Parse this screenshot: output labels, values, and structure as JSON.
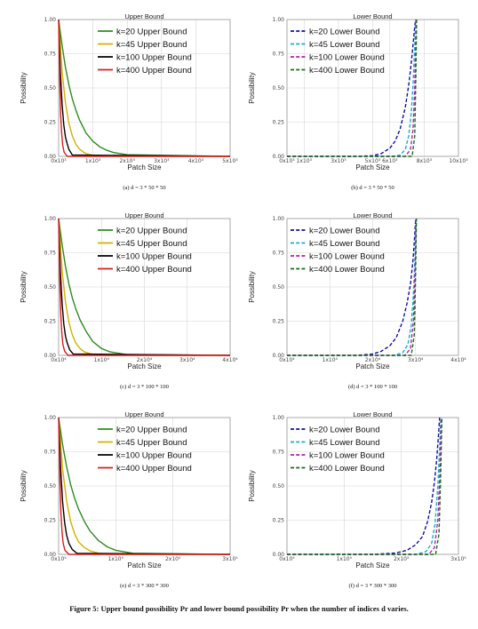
{
  "figure_caption": "Figure 5: Upper bound possibility Pr and lower bound possibility Pr when the number of indices d varies.",
  "chart_data": [
    {
      "type": "line",
      "subcaption": "(a) d = 3 * 50 * 50",
      "title": "Upper Bound",
      "xlabel": "Patch Size",
      "ylabel": "Possibility",
      "ylim": [
        0,
        1
      ],
      "yticks": [
        "0.00",
        "0.25",
        "0.50",
        "0.75",
        "1.00"
      ],
      "xlim": [
        0,
        5000
      ],
      "xticks": [
        {
          "v": 0,
          "label": "0x10³"
        },
        {
          "v": 1000,
          "label": "1x10³"
        },
        {
          "v": 2000,
          "label": "2x10³"
        },
        {
          "v": 3000,
          "label": "3x10³"
        },
        {
          "v": 4000,
          "label": "4x10³"
        },
        {
          "v": 5000,
          "label": "5x10³"
        }
      ],
      "grid": true,
      "legend_position": "top-right",
      "series": [
        {
          "name": "k=20 Upper Bound",
          "color": "#2e8b1f",
          "dash": "solid",
          "x": [
            0,
            100,
            200,
            300,
            400,
            500,
            600,
            800,
            1000,
            1200,
            1400,
            1600,
            2000,
            5000
          ],
          "y": [
            1.0,
            0.81,
            0.65,
            0.52,
            0.42,
            0.34,
            0.27,
            0.17,
            0.11,
            0.07,
            0.045,
            0.028,
            0.012,
            0.0
          ]
        },
        {
          "name": "k=45 Upper Bound",
          "color": "#d4b000",
          "dash": "solid",
          "x": [
            0,
            100,
            200,
            300,
            400,
            500,
            600,
            700,
            800,
            1000,
            1200,
            5000
          ],
          "y": [
            1.0,
            0.62,
            0.39,
            0.24,
            0.15,
            0.09,
            0.055,
            0.035,
            0.02,
            0.008,
            0.002,
            0.0
          ]
        },
        {
          "name": "k=100 Upper Bound",
          "color": "#000000",
          "dash": "solid",
          "x": [
            0,
            50,
            100,
            150,
            200,
            250,
            300,
            400,
            5000
          ],
          "y": [
            1.0,
            0.62,
            0.38,
            0.23,
            0.14,
            0.09,
            0.05,
            0.01,
            0.0
          ]
        },
        {
          "name": "k=400 Upper Bound",
          "color": "#d62020",
          "dash": "solid",
          "x": [
            0,
            30,
            60,
            90,
            120,
            160,
            250,
            5000
          ],
          "y": [
            1.0,
            0.55,
            0.3,
            0.16,
            0.08,
            0.03,
            0.0,
            0.0
          ]
        }
      ]
    },
    {
      "type": "line",
      "subcaption": "(b) d = 3 * 50 * 50",
      "title": "Lower Bound",
      "xlabel": "Patch Size",
      "ylabel": "Possibility",
      "ylim": [
        0,
        1
      ],
      "yticks": [
        "0.00",
        "0.25",
        "0.50",
        "0.75",
        "1.00"
      ],
      "xlim": [
        0,
        10000
      ],
      "xticks": [
        {
          "v": 0,
          "label": "0x10³"
        },
        {
          "v": 1000,
          "label": "1x10³"
        },
        {
          "v": 3000,
          "label": "3x10³"
        },
        {
          "v": 5000,
          "label": "5x10³"
        },
        {
          "v": 6000,
          "label": "6x10³"
        },
        {
          "v": 8000,
          "label": "8x10³"
        },
        {
          "v": 10000,
          "label": "10x10³"
        }
      ],
      "grid": true,
      "legend_position": "top-left",
      "series": [
        {
          "name": "k=20 Lower Bound",
          "color": "#1010a0",
          "dash": "dashed",
          "x": [
            0,
            4000,
            5000,
            5500,
            6000,
            6300,
            6600,
            6900,
            7100,
            7200,
            7300,
            7400,
            7450,
            7500
          ],
          "y": [
            0.0,
            0.0,
            0.005,
            0.02,
            0.06,
            0.11,
            0.2,
            0.36,
            0.52,
            0.63,
            0.75,
            0.88,
            0.95,
            1.0
          ]
        },
        {
          "name": "k=45 Lower Bound",
          "color": "#16b0c8",
          "dash": "dashed",
          "x": [
            0,
            6200,
            6600,
            6900,
            7100,
            7250,
            7350,
            7420,
            7480,
            7520
          ],
          "y": [
            0.0,
            0.0,
            0.01,
            0.05,
            0.15,
            0.32,
            0.52,
            0.72,
            0.9,
            1.0
          ]
        },
        {
          "name": "k=100 Lower Bound",
          "color": "#b020b0",
          "dash": "dashed",
          "x": [
            0,
            6900,
            7200,
            7350,
            7450,
            7500,
            7540
          ],
          "y": [
            0.0,
            0.0,
            0.05,
            0.2,
            0.5,
            0.8,
            1.0
          ]
        },
        {
          "name": "k=400 Lower Bound",
          "color": "#1a6e1a",
          "dash": "dashed",
          "x": [
            0,
            7300,
            7450,
            7520,
            7560
          ],
          "y": [
            0.0,
            0.0,
            0.15,
            0.6,
            1.0
          ]
        }
      ]
    },
    {
      "type": "line",
      "subcaption": "(c) d = 3 * 100 * 100",
      "title": "Upper Bound",
      "xlabel": "Patch Size",
      "ylabel": "Possibility",
      "ylim": [
        0,
        1
      ],
      "yticks": [
        "0.00",
        "0.25",
        "0.50",
        "0.75",
        "1.00"
      ],
      "xlim": [
        0,
        40000
      ],
      "xticks": [
        {
          "v": 0,
          "label": "0x10⁴"
        },
        {
          "v": 10000,
          "label": "1x10⁴"
        },
        {
          "v": 20000,
          "label": "2x10⁴"
        },
        {
          "v": 30000,
          "label": "3x10⁴"
        },
        {
          "v": 40000,
          "label": "4x10⁴"
        }
      ],
      "grid": true,
      "legend_position": "top-right",
      "series": [
        {
          "name": "k=20 Upper Bound",
          "color": "#2e8b1f",
          "dash": "solid",
          "x": [
            0,
            800,
            1600,
            2400,
            3200,
            4000,
            5000,
            6500,
            8000,
            10000,
            12000,
            16000,
            40000
          ],
          "y": [
            1.0,
            0.81,
            0.65,
            0.52,
            0.42,
            0.34,
            0.26,
            0.17,
            0.1,
            0.05,
            0.025,
            0.005,
            0.0
          ]
        },
        {
          "name": "k=45 Upper Bound",
          "color": "#d4b000",
          "dash": "solid",
          "x": [
            0,
            800,
            1600,
            2400,
            3200,
            4000,
            5000,
            6000,
            8000,
            10000,
            40000
          ],
          "y": [
            1.0,
            0.62,
            0.39,
            0.24,
            0.15,
            0.09,
            0.05,
            0.025,
            0.006,
            0.0,
            0.0
          ]
        },
        {
          "name": "k=100 Upper Bound",
          "color": "#000000",
          "dash": "solid",
          "x": [
            0,
            400,
            800,
            1200,
            1600,
            2000,
            2600,
            3400,
            40000
          ],
          "y": [
            1.0,
            0.62,
            0.38,
            0.23,
            0.14,
            0.09,
            0.04,
            0.01,
            0.0
          ]
        },
        {
          "name": "k=400 Upper Bound",
          "color": "#d62020",
          "dash": "solid",
          "x": [
            0,
            250,
            500,
            750,
            1000,
            1400,
            2200,
            40000
          ],
          "y": [
            1.0,
            0.55,
            0.3,
            0.16,
            0.08,
            0.03,
            0.0,
            0.0
          ]
        }
      ]
    },
    {
      "type": "line",
      "subcaption": "(d) d = 3 * 100 * 100",
      "title": "Lower Bound",
      "xlabel": "Patch Size",
      "ylabel": "Possibility",
      "ylim": [
        0,
        1
      ],
      "yticks": [
        "0.00",
        "0.25",
        "0.50",
        "0.75",
        "1.00"
      ],
      "xlim": [
        0,
        40000
      ],
      "xticks": [
        {
          "v": 0,
          "label": "0x10⁴"
        },
        {
          "v": 10000,
          "label": "1x10⁴"
        },
        {
          "v": 20000,
          "label": "2x10⁴"
        },
        {
          "v": 30000,
          "label": "3x10⁴"
        },
        {
          "v": 40000,
          "label": "4x10⁴"
        }
      ],
      "grid": true,
      "legend_position": "top-left",
      "series": [
        {
          "name": "k=20 Lower Bound",
          "color": "#1010a0",
          "dash": "dashed",
          "x": [
            0,
            16000,
            20000,
            22000,
            24000,
            25500,
            27000,
            28000,
            28800,
            29400,
            29800,
            30000
          ],
          "y": [
            0.0,
            0.0,
            0.01,
            0.03,
            0.07,
            0.13,
            0.25,
            0.38,
            0.52,
            0.7,
            0.88,
            1.0
          ]
        },
        {
          "name": "k=45 Lower Bound",
          "color": "#16b0c8",
          "dash": "dashed",
          "x": [
            0,
            25000,
            27000,
            28200,
            29000,
            29500,
            29900,
            30100
          ],
          "y": [
            0.0,
            0.0,
            0.02,
            0.08,
            0.22,
            0.45,
            0.75,
            1.0
          ]
        },
        {
          "name": "k=100 Lower Bound",
          "color": "#b020b0",
          "dash": "dashed",
          "x": [
            0,
            27500,
            28800,
            29500,
            29900,
            30150
          ],
          "y": [
            0.0,
            0.0,
            0.05,
            0.25,
            0.65,
            1.0
          ]
        },
        {
          "name": "k=400 Lower Bound",
          "color": "#1a6e1a",
          "dash": "dashed",
          "x": [
            0,
            29000,
            29700,
            30000,
            30200
          ],
          "y": [
            0.0,
            0.0,
            0.15,
            0.6,
            1.0
          ]
        }
      ]
    },
    {
      "type": "line",
      "subcaption": "(e) d = 3 * 300 * 300",
      "title": "Upper Bound",
      "xlabel": "Patch Size",
      "ylabel": "Possibility",
      "ylim": [
        0,
        1
      ],
      "yticks": [
        "0.00",
        "0.25",
        "0.50",
        "0.75",
        "1.00"
      ],
      "xlim": [
        0,
        300000
      ],
      "xticks": [
        {
          "v": 0,
          "label": "0x10⁵"
        },
        {
          "v": 100000,
          "label": "1x10⁵"
        },
        {
          "v": 200000,
          "label": "2x10⁵"
        },
        {
          "v": 300000,
          "label": "3x10⁵"
        }
      ],
      "grid": true,
      "legend_position": "top-right",
      "series": [
        {
          "name": "k=20 Upper Bound",
          "color": "#2e8b1f",
          "dash": "solid",
          "x": [
            0,
            7000,
            14000,
            21000,
            28000,
            35000,
            45000,
            55000,
            70000,
            85000,
            100000,
            130000,
            300000
          ],
          "y": [
            1.0,
            0.8,
            0.64,
            0.51,
            0.41,
            0.33,
            0.24,
            0.17,
            0.1,
            0.055,
            0.03,
            0.008,
            0.0
          ]
        },
        {
          "name": "k=45 Upper Bound",
          "color": "#d4b000",
          "dash": "solid",
          "x": [
            0,
            7000,
            14000,
            21000,
            28000,
            35000,
            45000,
            55000,
            70000,
            90000,
            300000
          ],
          "y": [
            1.0,
            0.62,
            0.39,
            0.24,
            0.15,
            0.09,
            0.05,
            0.025,
            0.008,
            0.0,
            0.0
          ]
        },
        {
          "name": "k=100 Upper Bound",
          "color": "#000000",
          "dash": "solid",
          "x": [
            0,
            3500,
            7000,
            10500,
            14000,
            18000,
            24000,
            32000,
            300000
          ],
          "y": [
            1.0,
            0.62,
            0.38,
            0.23,
            0.14,
            0.08,
            0.035,
            0.008,
            0.0
          ]
        },
        {
          "name": "k=400 Upper Bound",
          "color": "#d62020",
          "dash": "solid",
          "x": [
            0,
            2000,
            4000,
            6000,
            8000,
            11000,
            18000,
            300000
          ],
          "y": [
            1.0,
            0.55,
            0.3,
            0.16,
            0.08,
            0.03,
            0.0,
            0.0
          ]
        }
      ]
    },
    {
      "type": "line",
      "subcaption": "(f) d = 3 * 300 * 300",
      "title": "Lower Bound",
      "xlabel": "Patch Size",
      "ylabel": "Possibility",
      "ylim": [
        0,
        1
      ],
      "yticks": [
        "0.00",
        "0.25",
        "0.50",
        "0.75",
        "1.00"
      ],
      "xlim": [
        0,
        300000
      ],
      "xticks": [
        {
          "v": 0,
          "label": "0x10⁵"
        },
        {
          "v": 100000,
          "label": "1x10⁵"
        },
        {
          "v": 200000,
          "label": "2x10⁵"
        },
        {
          "v": 300000,
          "label": "3x10⁵"
        }
      ],
      "grid": true,
      "legend_position": "top-left",
      "series": [
        {
          "name": "k=20 Lower Bound",
          "color": "#1010a0",
          "dash": "dashed",
          "x": [
            0,
            150000,
            190000,
            210000,
            225000,
            237000,
            246000,
            253000,
            258000,
            262000,
            265000,
            267000
          ],
          "y": [
            0.0,
            0.0,
            0.01,
            0.03,
            0.07,
            0.13,
            0.24,
            0.38,
            0.53,
            0.7,
            0.87,
            1.0
          ]
        },
        {
          "name": "k=45 Lower Bound",
          "color": "#16b0c8",
          "dash": "dashed",
          "x": [
            0,
            225000,
            243000,
            253000,
            259000,
            264000,
            267000,
            269000
          ],
          "y": [
            0.0,
            0.0,
            0.02,
            0.08,
            0.22,
            0.5,
            0.78,
            1.0
          ]
        },
        {
          "name": "k=100 Lower Bound",
          "color": "#b020b0",
          "dash": "dashed",
          "x": [
            0,
            248000,
            258000,
            264000,
            268000,
            270000
          ],
          "y": [
            0.0,
            0.0,
            0.05,
            0.25,
            0.65,
            1.0
          ]
        },
        {
          "name": "k=400 Lower Bound",
          "color": "#1a6e1a",
          "dash": "dashed",
          "x": [
            0,
            260000,
            266000,
            269000,
            271000
          ],
          "y": [
            0.0,
            0.0,
            0.15,
            0.6,
            1.0
          ]
        }
      ]
    }
  ]
}
